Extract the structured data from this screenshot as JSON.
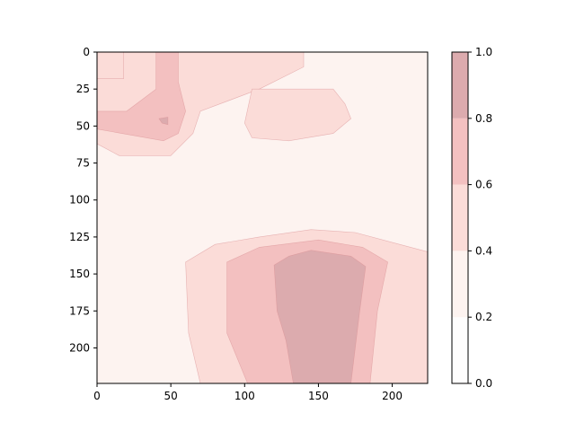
{
  "chart_data": {
    "type": "heatmap",
    "style": "filled-contour",
    "colormap": "translucent-red",
    "title": "",
    "xlabel": "",
    "ylabel": "",
    "xlim": [
      0,
      224
    ],
    "ylim": [
      224,
      0
    ],
    "y_inverted": true,
    "x_ticks": [
      0,
      50,
      100,
      150,
      200
    ],
    "y_ticks": [
      0,
      25,
      50,
      75,
      100,
      125,
      150,
      175,
      200
    ],
    "levels": [
      0.0,
      0.2,
      0.4,
      0.6,
      0.8,
      1.0
    ],
    "level_colors": [
      "#fefdfd",
      "#fdf3f0",
      "#fbdcd8",
      "#f3c0c0",
      "#dcabae"
    ],
    "line_color": "#d98f93",
    "colorbar": {
      "ticks": [
        "0.0",
        "0.2",
        "0.4",
        "0.6",
        "0.8",
        "1.0"
      ],
      "position": "right"
    },
    "grid": false,
    "regions": [
      {
        "level": 1,
        "points": [
          [
            0,
            0
          ],
          [
            224,
            0
          ],
          [
            224,
            224
          ],
          [
            0,
            224
          ]
        ]
      },
      {
        "level": 1,
        "points": [
          [
            0,
            0
          ],
          [
            182,
            0
          ],
          [
            190,
            25
          ],
          [
            200,
            40
          ],
          [
            187,
            46
          ],
          [
            172,
            52
          ],
          [
            150,
            58
          ],
          [
            118,
            56
          ],
          [
            95,
            57
          ],
          [
            72,
            64
          ],
          [
            65,
            72
          ],
          [
            0,
            70
          ]
        ]
      },
      {
        "level": 1,
        "points": [
          [
            40,
            145
          ],
          [
            60,
            128
          ],
          [
            80,
            122
          ],
          [
            120,
            118
          ],
          [
            150,
            115
          ],
          [
            182,
            110
          ],
          [
            224,
            112
          ],
          [
            224,
            224
          ],
          [
            35,
            224
          ],
          [
            35,
            200
          ]
        ]
      },
      {
        "level": 2,
        "points": [
          [
            0,
            0
          ],
          [
            140,
            0
          ],
          [
            140,
            10
          ],
          [
            110,
            25
          ],
          [
            70,
            40
          ],
          [
            65,
            55
          ],
          [
            50,
            70
          ],
          [
            15,
            70
          ],
          [
            0,
            62
          ]
        ]
      },
      {
        "level": 2,
        "points": [
          [
            0,
            18
          ],
          [
            18,
            18
          ],
          [
            18,
            0
          ],
          [
            0,
            0
          ]
        ]
      },
      {
        "level": 2,
        "points": [
          [
            105,
            25
          ],
          [
            160,
            25
          ],
          [
            168,
            35
          ],
          [
            172,
            45
          ],
          [
            160,
            55
          ],
          [
            130,
            60
          ],
          [
            105,
            58
          ],
          [
            100,
            48
          ]
        ]
      },
      {
        "level": 2,
        "points": [
          [
            60,
            142
          ],
          [
            80,
            130
          ],
          [
            110,
            125
          ],
          [
            145,
            120
          ],
          [
            175,
            122
          ],
          [
            205,
            130
          ],
          [
            224,
            135
          ],
          [
            224,
            224
          ],
          [
            70,
            224
          ],
          [
            62,
            190
          ]
        ]
      },
      {
        "level": 3,
        "points": [
          [
            0,
            40
          ],
          [
            20,
            40
          ],
          [
            40,
            25
          ],
          [
            40,
            0
          ],
          [
            55,
            0
          ],
          [
            55,
            20
          ],
          [
            60,
            40
          ],
          [
            55,
            55
          ],
          [
            45,
            60
          ],
          [
            0,
            52
          ]
        ]
      },
      {
        "level": 3,
        "points": [
          [
            88,
            142
          ],
          [
            110,
            132
          ],
          [
            150,
            127
          ],
          [
            180,
            132
          ],
          [
            197,
            142
          ],
          [
            190,
            175
          ],
          [
            185,
            224
          ],
          [
            102,
            224
          ],
          [
            88,
            190
          ]
        ]
      },
      {
        "level": 4,
        "points": [
          [
            120,
            144
          ],
          [
            130,
            138
          ],
          [
            145,
            134
          ],
          [
            172,
            138
          ],
          [
            182,
            145
          ],
          [
            178,
            175
          ],
          [
            172,
            224
          ],
          [
            133,
            224
          ],
          [
            128,
            195
          ],
          [
            122,
            175
          ]
        ]
      },
      {
        "level": 4,
        "points": [
          [
            42,
            45
          ],
          [
            48,
            44
          ],
          [
            48,
            49
          ],
          [
            44,
            48
          ]
        ]
      }
    ]
  }
}
